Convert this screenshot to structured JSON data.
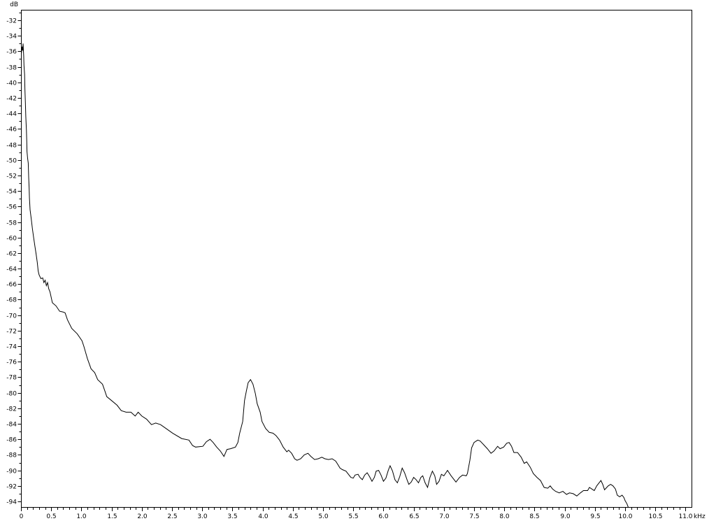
{
  "page": {
    "background": "#ffffff",
    "foreground": "#000000"
  },
  "chart_data": {
    "type": "line",
    "title": "",
    "ylabel": "dB",
    "x_unit": "kHz",
    "legend": "none",
    "grid": "off",
    "line_color": "#000000",
    "background": "#ffffff",
    "x_axis": {
      "min": 0,
      "max": 11.11,
      "minor_step": 0.1,
      "major_step": 0.5,
      "tick_labels": [
        "0",
        "0.5",
        "1.0",
        "1.5",
        "2.0",
        "2.5",
        "3.0",
        "3.5",
        "4.0",
        "4.5",
        "5.0",
        "5.5",
        "6.0",
        "6.5",
        "7.0",
        "7.5",
        "8.0",
        "8.5",
        "9.0",
        "9.5",
        "10.0",
        "10.5",
        "11.0"
      ]
    },
    "y_axis": {
      "min": -94.9,
      "max": -30.6,
      "minor_step": 1,
      "major_step": 2,
      "tick_labels": [
        "-32",
        "-34",
        "-36",
        "-38",
        "-40",
        "-42",
        "-44",
        "-46",
        "-48",
        "-50",
        "-52",
        "-54",
        "-56",
        "-58",
        "-60",
        "-62",
        "-64",
        "-66",
        "-68",
        "-70",
        "-72",
        "-74",
        "-76",
        "-78",
        "-80",
        "-82",
        "-84",
        "-86",
        "-88",
        "-90",
        "-92",
        "-94"
      ]
    },
    "points": [
      [
        0.005,
        -36.4
      ],
      [
        0.02,
        -35.4
      ],
      [
        0.027,
        -35.9
      ],
      [
        0.035,
        -35.0
      ],
      [
        0.045,
        -36.6
      ],
      [
        0.05,
        -37.8
      ],
      [
        0.06,
        -39.0
      ],
      [
        0.065,
        -40.8
      ],
      [
        0.073,
        -42.6
      ],
      [
        0.08,
        -44.4
      ],
      [
        0.09,
        -46.2
      ],
      [
        0.096,
        -47.7
      ],
      [
        0.1,
        -48.9
      ],
      [
        0.11,
        -49.8
      ],
      [
        0.12,
        -50.4
      ],
      [
        0.127,
        -52.2
      ],
      [
        0.135,
        -53.7
      ],
      [
        0.14,
        -54.9
      ],
      [
        0.15,
        -56.4
      ],
      [
        0.17,
        -57.6
      ],
      [
        0.19,
        -58.9
      ],
      [
        0.21,
        -60.0
      ],
      [
        0.23,
        -61.1
      ],
      [
        0.25,
        -62.1
      ],
      [
        0.27,
        -63.2
      ],
      [
        0.285,
        -64.3
      ],
      [
        0.3,
        -64.8
      ],
      [
        0.33,
        -65.3
      ],
      [
        0.36,
        -65.2
      ],
      [
        0.38,
        -65.8
      ],
      [
        0.4,
        -65.5
      ],
      [
        0.42,
        -66.2
      ],
      [
        0.44,
        -65.8
      ],
      [
        0.46,
        -66.6
      ],
      [
        0.48,
        -67.0
      ],
      [
        0.52,
        -68.4
      ],
      [
        0.58,
        -68.8
      ],
      [
        0.64,
        -69.5
      ],
      [
        0.7,
        -69.6
      ],
      [
        0.73,
        -69.7
      ],
      [
        0.77,
        -70.6
      ],
      [
        0.84,
        -71.7
      ],
      [
        0.93,
        -72.4
      ],
      [
        1.01,
        -73.3
      ],
      [
        1.04,
        -74.0
      ],
      [
        1.1,
        -75.6
      ],
      [
        1.16,
        -76.9
      ],
      [
        1.22,
        -77.4
      ],
      [
        1.27,
        -78.3
      ],
      [
        1.35,
        -78.9
      ],
      [
        1.39,
        -79.8
      ],
      [
        1.42,
        -80.5
      ],
      [
        1.5,
        -81.0
      ],
      [
        1.59,
        -81.6
      ],
      [
        1.66,
        -82.3
      ],
      [
        1.74,
        -82.5
      ],
      [
        1.82,
        -82.5
      ],
      [
        1.89,
        -83.0
      ],
      [
        1.94,
        -82.5
      ],
      [
        2.0,
        -83.0
      ],
      [
        2.08,
        -83.4
      ],
      [
        2.16,
        -84.1
      ],
      [
        2.23,
        -83.9
      ],
      [
        2.31,
        -84.1
      ],
      [
        2.4,
        -84.6
      ],
      [
        2.51,
        -85.2
      ],
      [
        2.66,
        -85.9
      ],
      [
        2.78,
        -86.1
      ],
      [
        2.84,
        -86.8
      ],
      [
        2.89,
        -87.0
      ],
      [
        3.01,
        -86.9
      ],
      [
        3.07,
        -86.3
      ],
      [
        3.13,
        -86.0
      ],
      [
        3.18,
        -86.4
      ],
      [
        3.24,
        -87.0
      ],
      [
        3.3,
        -87.5
      ],
      [
        3.36,
        -88.2
      ],
      [
        3.41,
        -87.3
      ],
      [
        3.47,
        -87.2
      ],
      [
        3.55,
        -87.0
      ],
      [
        3.59,
        -86.4
      ],
      [
        3.62,
        -85.2
      ],
      [
        3.67,
        -83.7
      ],
      [
        3.7,
        -81.0
      ],
      [
        3.73,
        -79.8
      ],
      [
        3.76,
        -78.7
      ],
      [
        3.8,
        -78.3
      ],
      [
        3.84,
        -78.9
      ],
      [
        3.88,
        -80.1
      ],
      [
        3.91,
        -81.4
      ],
      [
        3.96,
        -82.5
      ],
      [
        3.99,
        -83.7
      ],
      [
        4.05,
        -84.6
      ],
      [
        4.11,
        -85.1
      ],
      [
        4.17,
        -85.2
      ],
      [
        4.22,
        -85.5
      ],
      [
        4.28,
        -86.1
      ],
      [
        4.34,
        -87.0
      ],
      [
        4.4,
        -87.6
      ],
      [
        4.43,
        -87.4
      ],
      [
        4.48,
        -87.8
      ],
      [
        4.53,
        -88.5
      ],
      [
        4.57,
        -88.7
      ],
      [
        4.63,
        -88.5
      ],
      [
        4.69,
        -88.0
      ],
      [
        4.75,
        -87.8
      ],
      [
        4.8,
        -88.2
      ],
      [
        4.86,
        -88.6
      ],
      [
        4.92,
        -88.5
      ],
      [
        4.98,
        -88.3
      ],
      [
        5.03,
        -88.5
      ],
      [
        5.09,
        -88.6
      ],
      [
        5.15,
        -88.5
      ],
      [
        5.21,
        -88.8
      ],
      [
        5.25,
        -89.3
      ],
      [
        5.28,
        -89.7
      ],
      [
        5.32,
        -89.9
      ],
      [
        5.38,
        -90.1
      ],
      [
        5.42,
        -90.5
      ],
      [
        5.46,
        -90.9
      ],
      [
        5.5,
        -91.0
      ],
      [
        5.53,
        -90.6
      ],
      [
        5.58,
        -90.5
      ],
      [
        5.61,
        -90.9
      ],
      [
        5.65,
        -91.2
      ],
      [
        5.69,
        -90.6
      ],
      [
        5.73,
        -90.3
      ],
      [
        5.77,
        -90.8
      ],
      [
        5.81,
        -91.4
      ],
      [
        5.85,
        -90.9
      ],
      [
        5.88,
        -90.1
      ],
      [
        5.92,
        -90.0
      ],
      [
        5.96,
        -90.6
      ],
      [
        6.0,
        -91.4
      ],
      [
        6.04,
        -91.0
      ],
      [
        6.08,
        -90.0
      ],
      [
        6.11,
        -89.4
      ],
      [
        6.15,
        -90.1
      ],
      [
        6.19,
        -91.2
      ],
      [
        6.23,
        -91.6
      ],
      [
        6.27,
        -90.8
      ],
      [
        6.31,
        -89.7
      ],
      [
        6.35,
        -90.3
      ],
      [
        6.39,
        -91.2
      ],
      [
        6.42,
        -91.8
      ],
      [
        6.46,
        -91.5
      ],
      [
        6.5,
        -90.9
      ],
      [
        6.54,
        -91.2
      ],
      [
        6.58,
        -91.6
      ],
      [
        6.62,
        -90.9
      ],
      [
        6.65,
        -90.7
      ],
      [
        6.69,
        -91.6
      ],
      [
        6.73,
        -92.2
      ],
      [
        6.77,
        -90.9
      ],
      [
        6.81,
        -90.1
      ],
      [
        6.85,
        -90.7
      ],
      [
        6.88,
        -91.8
      ],
      [
        6.92,
        -91.4
      ],
      [
        6.96,
        -90.5
      ],
      [
        7.0,
        -90.7
      ],
      [
        7.06,
        -90.0
      ],
      [
        7.12,
        -90.7
      ],
      [
        7.2,
        -91.5
      ],
      [
        7.26,
        -90.9
      ],
      [
        7.31,
        -90.6
      ],
      [
        7.37,
        -90.7
      ],
      [
        7.39,
        -90.4
      ],
      [
        7.43,
        -88.7
      ],
      [
        7.46,
        -87.1
      ],
      [
        7.5,
        -86.4
      ],
      [
        7.56,
        -86.1
      ],
      [
        7.6,
        -86.2
      ],
      [
        7.66,
        -86.7
      ],
      [
        7.72,
        -87.2
      ],
      [
        7.78,
        -87.8
      ],
      [
        7.83,
        -87.5
      ],
      [
        7.89,
        -86.9
      ],
      [
        7.93,
        -87.2
      ],
      [
        7.99,
        -87.0
      ],
      [
        8.04,
        -86.5
      ],
      [
        8.08,
        -86.4
      ],
      [
        8.12,
        -86.9
      ],
      [
        8.16,
        -87.7
      ],
      [
        8.22,
        -87.7
      ],
      [
        8.28,
        -88.3
      ],
      [
        8.33,
        -89.1
      ],
      [
        8.37,
        -88.9
      ],
      [
        8.43,
        -89.6
      ],
      [
        8.48,
        -90.4
      ],
      [
        8.54,
        -90.9
      ],
      [
        8.6,
        -91.3
      ],
      [
        8.66,
        -92.2
      ],
      [
        8.72,
        -92.3
      ],
      [
        8.76,
        -92.0
      ],
      [
        8.8,
        -92.4
      ],
      [
        8.85,
        -92.7
      ],
      [
        8.91,
        -92.9
      ],
      [
        8.97,
        -92.7
      ],
      [
        9.03,
        -93.1
      ],
      [
        9.08,
        -92.9
      ],
      [
        9.14,
        -93.0
      ],
      [
        9.2,
        -93.3
      ],
      [
        9.26,
        -92.9
      ],
      [
        9.31,
        -92.6
      ],
      [
        9.38,
        -92.6
      ],
      [
        9.41,
        -92.2
      ],
      [
        9.45,
        -92.4
      ],
      [
        9.49,
        -92.6
      ],
      [
        9.53,
        -92.0
      ],
      [
        9.57,
        -91.6
      ],
      [
        9.6,
        -91.3
      ],
      [
        9.63,
        -91.8
      ],
      [
        9.66,
        -92.5
      ],
      [
        9.72,
        -92.0
      ],
      [
        9.76,
        -91.8
      ],
      [
        9.8,
        -92.0
      ],
      [
        9.84,
        -92.4
      ],
      [
        9.87,
        -93.2
      ],
      [
        9.91,
        -93.4
      ],
      [
        9.95,
        -93.2
      ],
      [
        9.98,
        -93.5
      ],
      [
        10.0,
        -93.9
      ],
      [
        10.03,
        -94.3
      ],
      [
        10.05,
        -94.7
      ],
      [
        10.07,
        -95.4
      ]
    ]
  }
}
